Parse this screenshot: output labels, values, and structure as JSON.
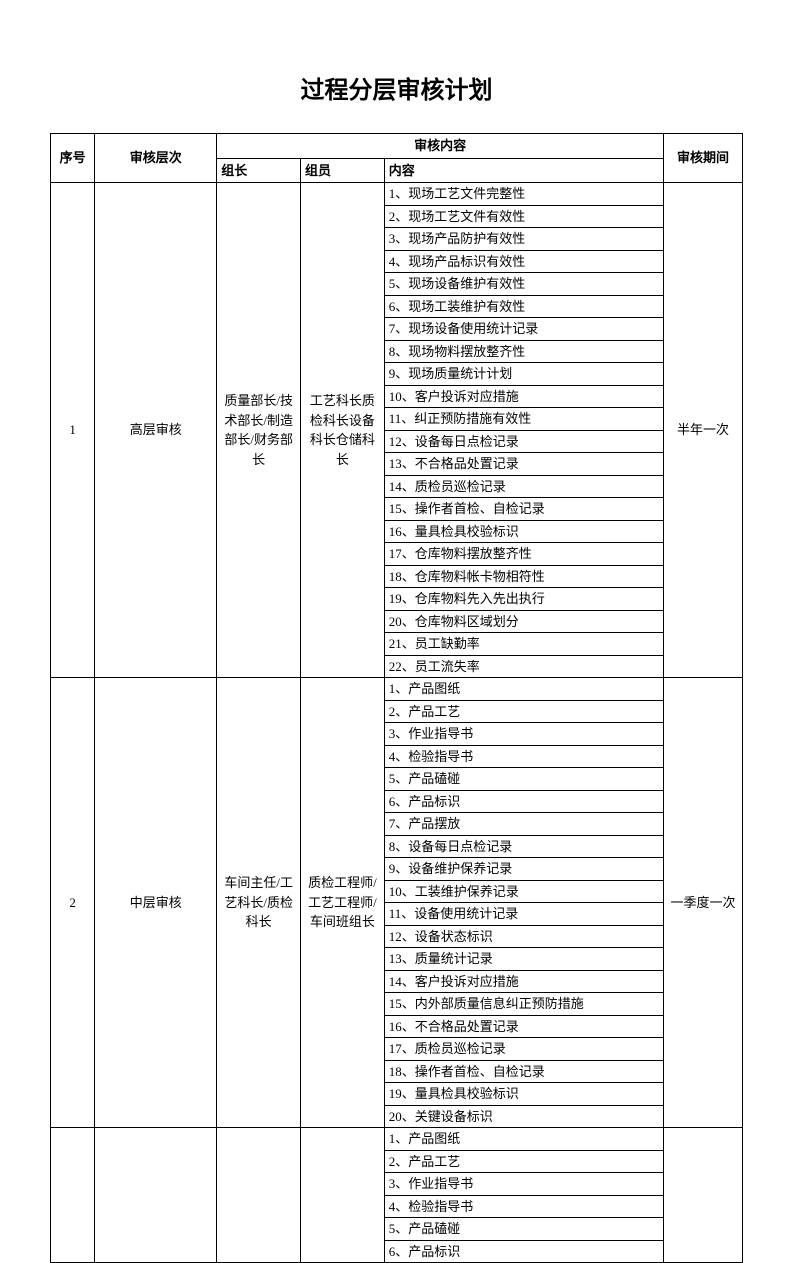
{
  "title": "过程分层审核计划",
  "headers": {
    "seq": "序号",
    "level": "审核层次",
    "content_group": "审核内容",
    "leader": "组长",
    "member": "组员",
    "content": "内容",
    "period": "审核期间"
  },
  "sections": [
    {
      "seq": "1",
      "level": "高层审核",
      "leader": "质量部长/技术部长/制造部长/财务部长",
      "member": "工艺科长质检科长设备科长仓储科长",
      "period": "半年一次",
      "items": [
        "1、现场工艺文件完整性",
        "2、现场工艺文件有效性",
        "3、现场产品防护有效性",
        "4、现场产品标识有效性",
        "5、现场设备维护有效性",
        "6、现场工装维护有效性",
        "7、现场设备使用统计记录",
        "8、现场物料摆放整齐性",
        "9、现场质量统计计划",
        "10、客户投诉对应措施",
        "11、纠正预防措施有效性",
        "12、设备每日点检记录",
        "13、不合格品处置记录",
        "14、质检员巡检记录",
        "15、操作者首检、自检记录",
        "16、量具检具校验标识",
        "17、仓库物料摆放整齐性",
        "18、仓库物料帐卡物相符性",
        "19、仓库物料先入先出执行",
        "20、仓库物料区域划分",
        "21、员工缺勤率",
        "22、员工流失率"
      ]
    },
    {
      "seq": "2",
      "level": "中层审核",
      "leader": "车间主任/工艺科长/质检科长",
      "member": "质检工程师/工艺工程师/车间班组长",
      "period": "一季度一次",
      "items": [
        "1、产品图纸",
        "2、产品工艺",
        "3、作业指导书",
        "4、检验指导书",
        "5、产品磕碰",
        "6、产品标识",
        "7、产品摆放",
        "8、设备每日点检记录",
        "9、设备维护保养记录",
        "10、工装维护保养记录",
        "11、设备使用统计记录",
        "12、设备状态标识",
        "13、质量统计记录",
        "14、客户投诉对应措施",
        "15、内外部质量信息纠正预防措施",
        "16、不合格品处置记录",
        "17、质检员巡检记录",
        "18、操作者首检、自检记录",
        "19、量具检具校验标识",
        "20、关键设备标识"
      ]
    },
    {
      "seq": "",
      "level": "",
      "leader": "",
      "member": "",
      "period": "",
      "items": [
        "1、产品图纸",
        "2、产品工艺",
        "3、作业指导书",
        "4、检验指导书",
        "5、产品磕碰",
        "6、产品标识"
      ]
    }
  ],
  "colors": {
    "background": "#ffffff",
    "border": "#000000",
    "text": "#000000"
  },
  "fonts": {
    "title_size": 24,
    "body_size": 13
  }
}
